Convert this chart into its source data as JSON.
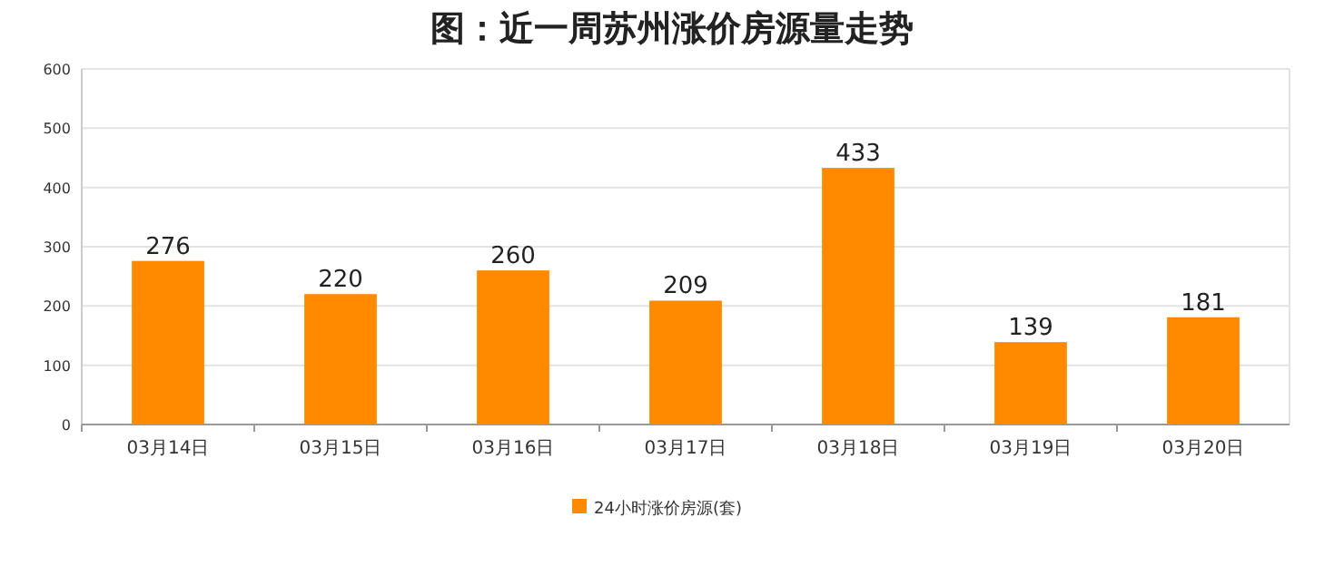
{
  "chart_data": {
    "type": "bar",
    "title": "图：近一周苏州涨价房源量走势",
    "categories": [
      "03月14日",
      "03月15日",
      "03月16日",
      "03月17日",
      "03月18日",
      "03月19日",
      "03月20日"
    ],
    "series": [
      {
        "name": "24小时涨价房源(套)",
        "color": "#ff8a00",
        "values": [
          276,
          220,
          260,
          209,
          433,
          139,
          181
        ]
      }
    ],
    "ylim": [
      0,
      600
    ],
    "yticks": [
      0,
      100,
      200,
      300,
      400,
      500,
      600
    ],
    "grid": "y",
    "legend": "bottom",
    "data_labels": true
  }
}
